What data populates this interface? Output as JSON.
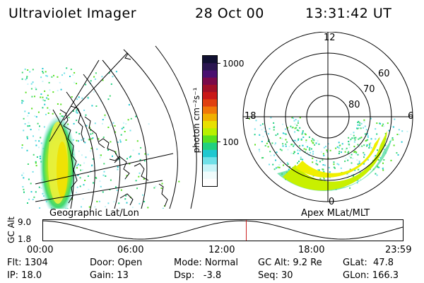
{
  "header": {
    "instrument": "Ultraviolet Imager",
    "date": "28 Oct 00",
    "time": "13:31:42 UT"
  },
  "colorbar": {
    "tick_labels": [
      "1000",
      "100"
    ],
    "unit_label": "photon cm⁻²s⁻¹",
    "colors": [
      "#101030",
      "#2a1650",
      "#4a1070",
      "#7a0a4a",
      "#a01028",
      "#c81818",
      "#e04010",
      "#f07808",
      "#f0b000",
      "#e8e000",
      "#b8f000",
      "#58e020",
      "#20d080",
      "#20c8d0",
      "#70e0e8",
      "#c8f4f8",
      "#f0fcfc",
      "#ffffff"
    ]
  },
  "geo_panel": {
    "caption": "Geographic Lat/Lon"
  },
  "polar_panel": {
    "caption": "Apex MLat/MLT",
    "mlt_labels": {
      "top": "12",
      "left": "18",
      "right": "6",
      "bottom": "0"
    },
    "lat_labels": [
      "60",
      "70",
      "80"
    ]
  },
  "altitude_plot": {
    "ylabel": "GC Alt",
    "yticks": [
      "9.0",
      "1.8"
    ],
    "xticks": [
      "00:00",
      "06:00",
      "12:00",
      "18:00",
      "23:59"
    ],
    "current_time_fraction": 0.5637,
    "marker_color": "#cc2222"
  },
  "status": {
    "row1": {
      "flt": "Flt: 1304",
      "door": "Door: Open",
      "mode": "Mode: Normal",
      "gc_alt": "GC Alt: 9.2 Re",
      "glat": "GLat:  47.8"
    },
    "row2": {
      "ip": "IP: 18.0",
      "gain": "Gain: 13",
      "dsp": "Dsp:   -3.8",
      "seq": "Seq: 30",
      "glon": "GLon: 166.3"
    }
  }
}
